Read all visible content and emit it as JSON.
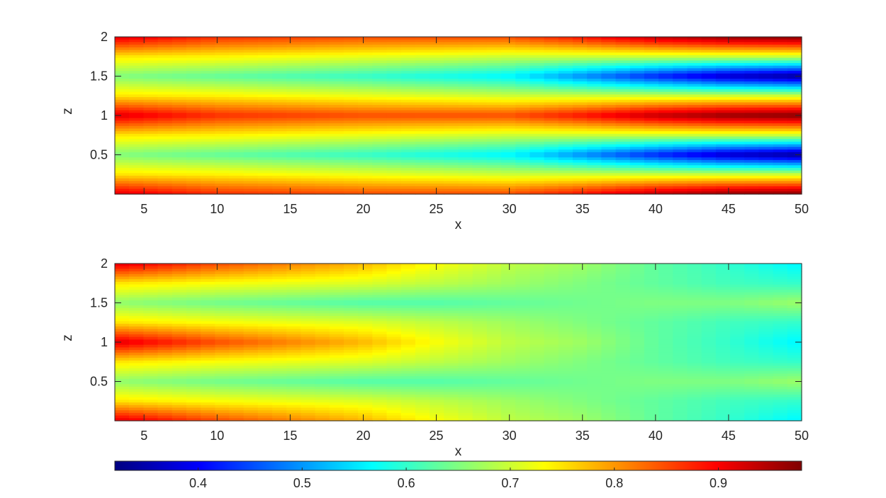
{
  "chart_data": [
    {
      "type": "heatmap",
      "title": "",
      "xlabel": "x",
      "ylabel": "z",
      "xlim": [
        3,
        50
      ],
      "ylim": [
        0,
        2
      ],
      "xticks": [
        5,
        10,
        15,
        20,
        25,
        30,
        35,
        40,
        45,
        50
      ],
      "yticks": [
        0.5,
        1,
        1.5,
        2
      ],
      "colormap": "jet",
      "clim": [
        0.32,
        0.98
      ],
      "profile": {
        "x": [
          3,
          10,
          20,
          30,
          35,
          40,
          45,
          50
        ],
        "z": [
          0,
          0.25,
          0.5,
          0.75,
          1,
          1.25,
          1.5,
          1.75,
          2
        ],
        "values": [
          [
            0.92,
            0.75,
            0.65,
            0.75,
            0.92,
            0.75,
            0.65,
            0.75,
            0.92
          ],
          [
            0.87,
            0.74,
            0.63,
            0.74,
            0.87,
            0.74,
            0.63,
            0.74,
            0.87
          ],
          [
            0.85,
            0.72,
            0.6,
            0.72,
            0.85,
            0.72,
            0.6,
            0.72,
            0.85
          ],
          [
            0.85,
            0.7,
            0.56,
            0.7,
            0.85,
            0.7,
            0.56,
            0.7,
            0.85
          ],
          [
            0.89,
            0.7,
            0.49,
            0.7,
            0.89,
            0.7,
            0.49,
            0.7,
            0.89
          ],
          [
            0.94,
            0.7,
            0.42,
            0.7,
            0.94,
            0.7,
            0.42,
            0.7,
            0.94
          ],
          [
            0.97,
            0.7,
            0.36,
            0.7,
            0.97,
            0.7,
            0.36,
            0.7,
            0.97
          ],
          [
            0.98,
            0.7,
            0.33,
            0.7,
            0.98,
            0.7,
            0.33,
            0.7,
            0.98
          ]
        ]
      }
    },
    {
      "type": "heatmap",
      "title": "",
      "xlabel": "x",
      "ylabel": "z",
      "xlim": [
        3,
        50
      ],
      "ylim": [
        0,
        2
      ],
      "xticks": [
        5,
        10,
        15,
        20,
        25,
        30,
        35,
        40,
        45,
        50
      ],
      "yticks": [
        0.5,
        1,
        1.5,
        2
      ],
      "colormap": "jet",
      "clim": [
        0.32,
        0.98
      ],
      "profile": {
        "x": [
          3,
          10,
          20,
          25,
          30,
          35,
          40,
          45,
          50
        ],
        "z": [
          0,
          0.25,
          0.5,
          0.75,
          1,
          1.25,
          1.5,
          1.75,
          2
        ],
        "values": [
          [
            0.92,
            0.75,
            0.66,
            0.75,
            0.92,
            0.75,
            0.66,
            0.75,
            0.92
          ],
          [
            0.85,
            0.73,
            0.64,
            0.73,
            0.85,
            0.73,
            0.64,
            0.73,
            0.85
          ],
          [
            0.78,
            0.71,
            0.62,
            0.71,
            0.78,
            0.71,
            0.62,
            0.71,
            0.78
          ],
          [
            0.73,
            0.69,
            0.62,
            0.69,
            0.73,
            0.69,
            0.62,
            0.69,
            0.73
          ],
          [
            0.69,
            0.67,
            0.63,
            0.67,
            0.69,
            0.67,
            0.63,
            0.67,
            0.69
          ],
          [
            0.67,
            0.65,
            0.64,
            0.65,
            0.67,
            0.65,
            0.64,
            0.65,
            0.67
          ],
          [
            0.63,
            0.63,
            0.65,
            0.63,
            0.63,
            0.63,
            0.65,
            0.63,
            0.63
          ],
          [
            0.6,
            0.61,
            0.65,
            0.61,
            0.6,
            0.61,
            0.65,
            0.61,
            0.6
          ],
          [
            0.56,
            0.6,
            0.67,
            0.6,
            0.56,
            0.6,
            0.67,
            0.6,
            0.56
          ]
        ]
      }
    }
  ],
  "colorbar": {
    "orientation": "horizontal",
    "range": [
      0.32,
      0.98
    ],
    "ticks": [
      0.4,
      0.5,
      0.6,
      0.7,
      0.8,
      0.9
    ],
    "colormap": "jet"
  },
  "colors": {
    "axis": "#262626",
    "background": "#ffffff"
  }
}
